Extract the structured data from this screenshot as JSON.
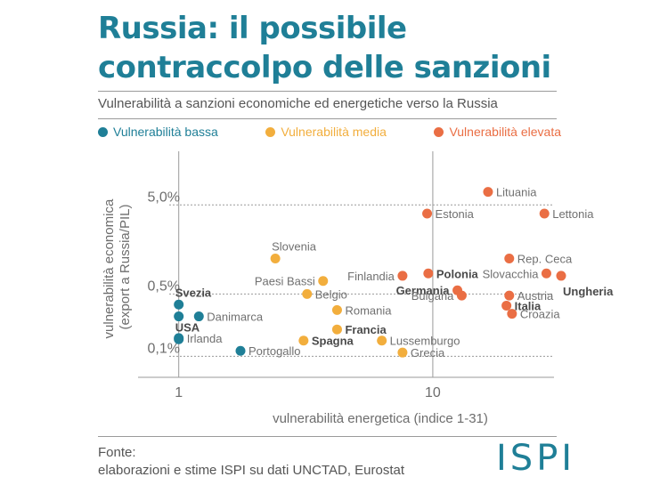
{
  "header": {
    "title_line1": "Russia: il possibile",
    "title_line2": "contraccolpo delle sanzioni",
    "subtitle": "Vulnerabilità a sanzioni economiche ed energetiche verso la Russia"
  },
  "colors": {
    "accent": "#1f7f97",
    "low": "#1f7f97",
    "medium": "#f2ae3d",
    "high": "#ea6e44"
  },
  "legend": [
    {
      "label": "Vulnerabilità bassa",
      "color": "#1f7f97"
    },
    {
      "label": "Vulnerabilità media",
      "color": "#f2ae3d"
    },
    {
      "label": "Vulnerabilità elevata",
      "color": "#ea6e44"
    }
  ],
  "chart_data": {
    "type": "scatter",
    "xlabel": "vulnerabilità energetica (indice 1-31)",
    "ylabel_line1": "vulnerabilità economica",
    "ylabel_line2": "(export a Russia/PIL)",
    "x_scale": "log",
    "y_scale": "log",
    "xlim": [
      0.72,
      30
    ],
    "ylim": [
      0.058,
      20
    ],
    "x_ticks": [
      {
        "value": 1,
        "label": "1"
      },
      {
        "value": 10,
        "label": "10"
      }
    ],
    "y_ticks": [
      {
        "value": 0.1,
        "label": "0,1%"
      },
      {
        "value": 0.5,
        "label": "0,5%"
      },
      {
        "value": 5.0,
        "label": "5,0%"
      }
    ],
    "series": [
      {
        "name": "Vulnerabilità bassa",
        "color": "#1f7f97",
        "points": [
          {
            "label": "Svezia",
            "x": 1.0,
            "y": 0.38,
            "bold": true,
            "pos": "above"
          },
          {
            "label": "",
            "x": 1.0,
            "y": 0.28
          },
          {
            "label": "Danimarca",
            "x": 1.2,
            "y": 0.28,
            "pos": "right"
          },
          {
            "label": "USA",
            "x": 1.0,
            "y": 0.155,
            "bold": true,
            "pos": "above"
          },
          {
            "label": "Irlanda",
            "x": 1.0,
            "y": 0.16,
            "pos": "right"
          },
          {
            "label": "Portogallo",
            "x": 1.75,
            "y": 0.115,
            "pos": "right"
          }
        ]
      },
      {
        "name": "Vulnerabilità media",
        "color": "#f2ae3d",
        "points": [
          {
            "label": "Slovenia",
            "x": 2.4,
            "y": 1.25,
            "pos": "above"
          },
          {
            "label": "Paesi Bassi",
            "x": 3.7,
            "y": 0.7,
            "pos": "left"
          },
          {
            "label": "Belgio",
            "x": 3.2,
            "y": 0.5,
            "pos": "right"
          },
          {
            "label": "Romania",
            "x": 4.2,
            "y": 0.33,
            "pos": "right"
          },
          {
            "label": "Francia",
            "x": 4.2,
            "y": 0.2,
            "bold": true,
            "pos": "right"
          },
          {
            "label": "Spagna",
            "x": 3.1,
            "y": 0.15,
            "bold": true,
            "pos": "right"
          },
          {
            "label": "Lussemburgo",
            "x": 6.3,
            "y": 0.15,
            "pos": "right"
          },
          {
            "label": "Grecia",
            "x": 7.6,
            "y": 0.11,
            "pos": "right"
          }
        ]
      },
      {
        "name": "Vulnerabilità elevata",
        "color": "#ea6e44",
        "points": [
          {
            "label": "Lituania",
            "x": 16.5,
            "y": 7.0,
            "pos": "right"
          },
          {
            "label": "Estonia",
            "x": 9.5,
            "y": 4.0,
            "pos": "right"
          },
          {
            "label": "Lettonia",
            "x": 27.5,
            "y": 4.0,
            "pos": "right"
          },
          {
            "label": "Rep. Ceca",
            "x": 20.0,
            "y": 1.25,
            "pos": "right"
          },
          {
            "label": "Finlandia",
            "x": 7.6,
            "y": 0.8,
            "pos": "left"
          },
          {
            "label": "Polonia",
            "x": 9.6,
            "y": 0.85,
            "bold": true,
            "pos": "right"
          },
          {
            "label": "Slovacchia",
            "x": 28.0,
            "y": 0.85,
            "pos": "left"
          },
          {
            "label": "Ungheria",
            "x": 32.0,
            "y": 0.8,
            "bold": true,
            "pos": "below"
          },
          {
            "label": "Germania",
            "x": 12.5,
            "y": 0.55,
            "bold": true,
            "pos": "left"
          },
          {
            "label": "Bulgaria",
            "x": 13.0,
            "y": 0.48,
            "pos": "left"
          },
          {
            "label": "Austria",
            "x": 20.0,
            "y": 0.48,
            "pos": "right"
          },
          {
            "label": "Italia",
            "x": 19.5,
            "y": 0.37,
            "bold": true,
            "pos": "right"
          },
          {
            "label": "Croazia",
            "x": 20.5,
            "y": 0.3,
            "pos": "right"
          }
        ]
      }
    ]
  },
  "footer": {
    "source_label": "Fonte:",
    "source_text": "elaborazioni e stime ISPI su dati UNCTAD, Eurostat",
    "logo": "ISPI"
  }
}
